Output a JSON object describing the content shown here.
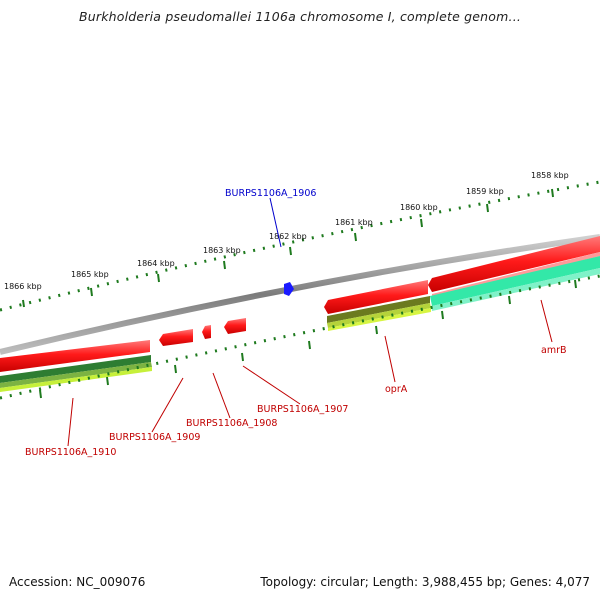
{
  "header": {
    "title": "Burkholderia pseudomallei 1106a chromosome I, complete genom..."
  },
  "footer": {
    "accession": "Accession: NC_009076",
    "summary": "Topology: circular; Length: 3,988,455 bp; Genes: 4,077"
  },
  "scale": {
    "labels": [
      "1866 kbp",
      "1865 kbp",
      "1864 kbp",
      "1863 kbp",
      "1862 kbp",
      "1861 kbp",
      "1860 kbp",
      "1859 kbp",
      "1858 kbp"
    ]
  },
  "genes": {
    "BURPS1106A_1906": "BURPS1106A_1906",
    "BURPS1106A_1907": "BURPS1106A_1907",
    "BURPS1106A_1908": "BURPS1106A_1908",
    "BURPS1106A_1909": "BURPS1106A_1909",
    "BURPS1106A_1910": "BURPS1106A_1910",
    "oprA": "oprA",
    "amrB": "amrB"
  },
  "colors": {
    "backbone": "#8c8c8c",
    "forward_cds": "#ff1a1a",
    "tick_green": "#1e7a1e",
    "label_red": "#c00000",
    "label_blue": "#0000cc",
    "highlight_blue": "#1a1aff",
    "teal_band": "#33e8a8",
    "dark_green_band": "#2e7d32",
    "lime_band": "#c6f03a"
  }
}
